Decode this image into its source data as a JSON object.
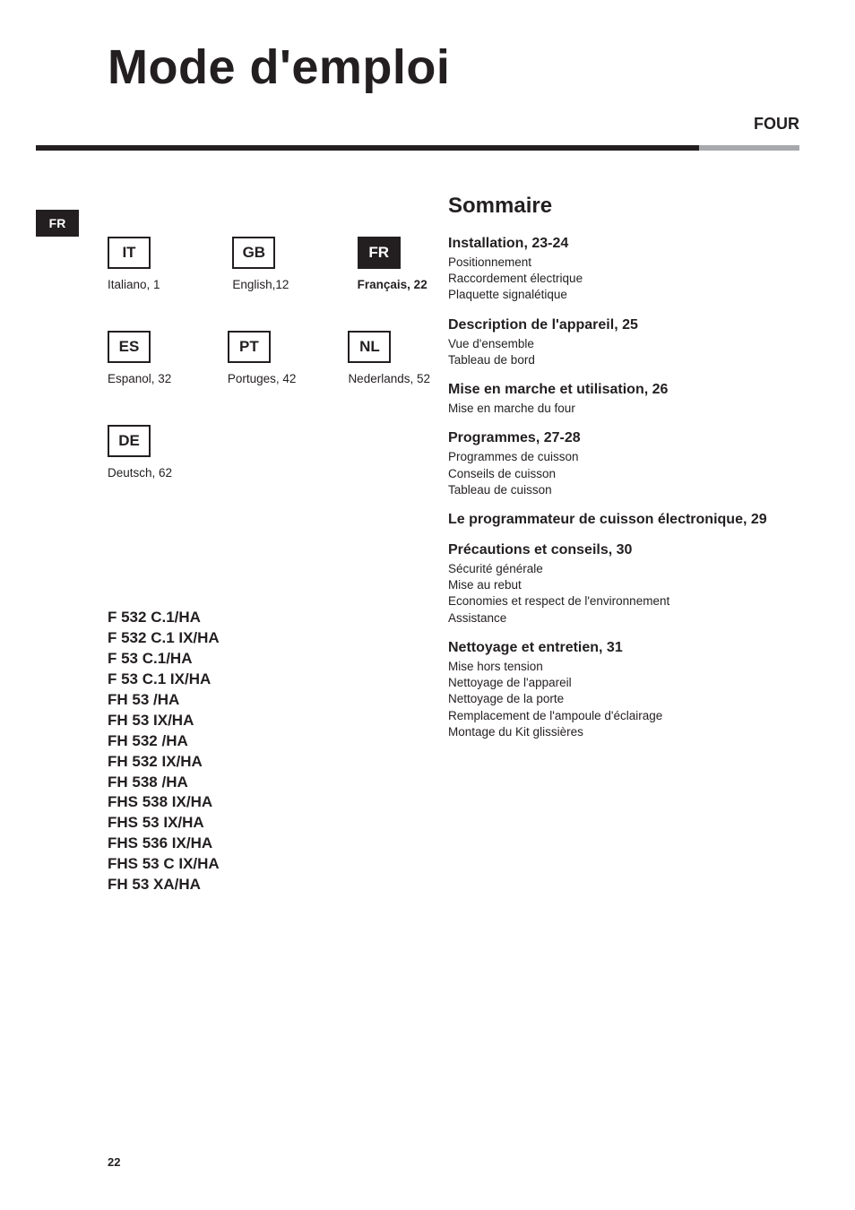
{
  "page": {
    "title": "Mode d'emploi",
    "category": "FOUR",
    "page_number": "22"
  },
  "rule": {
    "grey_color": "#a7a9ac",
    "black_color": "#231f20"
  },
  "side_tab": {
    "code": "FR"
  },
  "languages": {
    "rows": [
      [
        {
          "code": "IT",
          "label": "Italiano, 1",
          "active": false
        },
        {
          "code": "GB",
          "label": "English,12",
          "active": false
        },
        {
          "code": "FR",
          "label": "Français, 22",
          "active": true
        }
      ],
      [
        {
          "code": "ES",
          "label": "Espanol, 32",
          "active": false
        },
        {
          "code": "PT",
          "label": "Portuges, 42",
          "active": false
        },
        {
          "code": "NL",
          "label": "Nederlands, 52",
          "active": false
        }
      ],
      [
        {
          "code": "DE",
          "label": "Deutsch, 62",
          "active": false
        }
      ]
    ]
  },
  "models": [
    "F 532 C.1/HA",
    "F 532 C.1 IX/HA",
    "F 53 C.1/HA",
    "F 53 C.1 IX/HA",
    "FH 53 /HA",
    "FH 53 IX/HA",
    "FH 532 /HA",
    "FH 532 IX/HA",
    "FH 538 /HA",
    "FHS 538 IX/HA",
    "FHS 53 IX/HA",
    "FHS 536 IX/HA",
    "FHS 53 C IX/HA",
    "FH 53 XA/HA"
  ],
  "summary": {
    "heading": "Sommaire",
    "sections": [
      {
        "title": "Installation, 23-24",
        "lines": [
          "Positionnement",
          "Raccordement électrique",
          "Plaquette signalétique"
        ]
      },
      {
        "title": "Description de l'appareil, 25",
        "lines": [
          "Vue d'ensemble",
          "Tableau de bord"
        ]
      },
      {
        "title": "Mise en marche et utilisation, 26",
        "lines": [
          "Mise en marche du four"
        ]
      },
      {
        "title": "Programmes, 27-28",
        "lines": [
          "Programmes de cuisson",
          "Conseils de cuisson",
          "Tableau de cuisson"
        ]
      },
      {
        "title": "Le programmateur de cuisson électronique, 29",
        "lines": []
      },
      {
        "title": "Précautions et conseils, 30",
        "lines": [
          "Sécurité générale",
          "Mise au rebut",
          "Economies et respect de l'environnement",
          "Assistance"
        ]
      },
      {
        "title": "Nettoyage et entretien, 31",
        "lines": [
          "Mise hors tension",
          "Nettoyage de l'appareil",
          "Nettoyage de la porte",
          "Remplacement de l'ampoule d'éclairage",
          "Montage du Kit glissières"
        ]
      }
    ]
  }
}
